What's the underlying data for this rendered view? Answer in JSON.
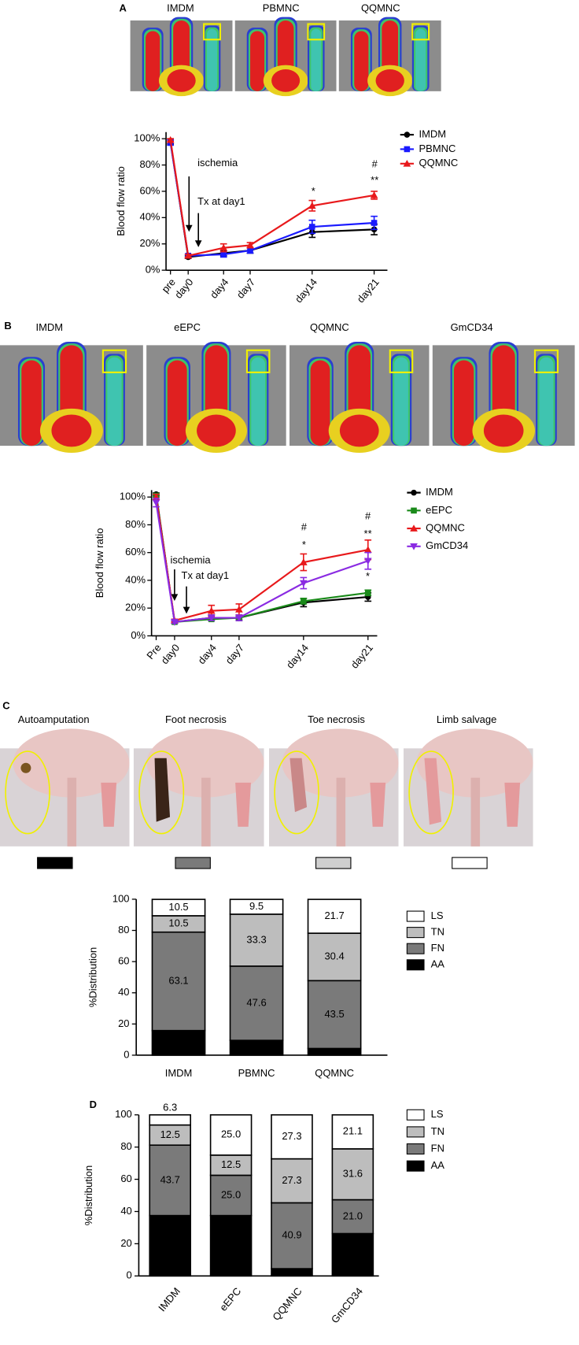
{
  "panels": {
    "A": {
      "label": "A",
      "images": [
        "IMDM",
        "PBMNC",
        "QQMNC"
      ]
    },
    "B": {
      "label": "B",
      "images": [
        "IMDM",
        "eEPC",
        "QQMNC",
        "GmCD34"
      ]
    },
    "C": {
      "label": "C",
      "images": [
        "Autoamputation",
        "Foot necrosis",
        "Toe necrosis",
        "Limb salvage"
      ]
    },
    "D": {
      "label": "D"
    }
  },
  "chart_data": [
    {
      "type": "line",
      "ylabel": "Blood flow ratio",
      "x": [
        -2,
        0,
        4,
        7,
        14,
        21
      ],
      "xlim": [
        -2.5,
        22.5
      ],
      "xticks": [
        {
          "value": -2,
          "label": "pre"
        },
        {
          "value": 0,
          "label": "day0"
        },
        {
          "value": 4,
          "label": "day4"
        },
        {
          "value": 7,
          "label": "day7"
        },
        {
          "value": 14,
          "label": "day14"
        },
        {
          "value": 21,
          "label": "day21"
        }
      ],
      "ylim": [
        0,
        105
      ],
      "yticks": [
        {
          "value": 0,
          "label": "0%"
        },
        {
          "value": 20,
          "label": "20%"
        },
        {
          "value": 40,
          "label": "40%"
        },
        {
          "value": 60,
          "label": "60%"
        },
        {
          "value": 80,
          "label": "80%"
        },
        {
          "value": 100,
          "label": "100%"
        }
      ],
      "series": [
        {
          "name": "IMDM",
          "color": "#000000",
          "marker": "circle",
          "values": [
            98,
            10,
            13,
            15,
            29,
            31
          ],
          "errors": [
            2,
            1,
            2,
            2,
            4,
            4
          ]
        },
        {
          "name": "PBMNC",
          "color": "#1a1aff",
          "marker": "square",
          "values": [
            97,
            11,
            12,
            15,
            33,
            36
          ],
          "errors": [
            2,
            1,
            2,
            2,
            5,
            5
          ]
        },
        {
          "name": "QQMNC",
          "color": "#e8191b",
          "marker": "triangle-up",
          "values": [
            99,
            11,
            17,
            19,
            49,
            57
          ],
          "errors": [
            1,
            1,
            3,
            2,
            4,
            3
          ]
        }
      ],
      "annotations": [
        "ischemia",
        "Tx at day1",
        "*",
        "#",
        "**"
      ]
    },
    {
      "type": "line",
      "ylabel": "Blood flow ratio",
      "x": [
        -2,
        0,
        4,
        7,
        14,
        21
      ],
      "xlim": [
        -2.5,
        22
      ],
      "xticks": [
        {
          "value": -2,
          "label": "Pre"
        },
        {
          "value": 0,
          "label": "day0"
        },
        {
          "value": 4,
          "label": "day4"
        },
        {
          "value": 7,
          "label": "day7"
        },
        {
          "value": 14,
          "label": "day14"
        },
        {
          "value": 21,
          "label": "day21"
        }
      ],
      "ylim": [
        0,
        105
      ],
      "yticks": [
        {
          "value": 0,
          "label": "0%"
        },
        {
          "value": 20,
          "label": "20%"
        },
        {
          "value": 40,
          "label": "40%"
        },
        {
          "value": 60,
          "label": "60%"
        },
        {
          "value": 80,
          "label": "80%"
        },
        {
          "value": 100,
          "label": "100%"
        }
      ],
      "series": [
        {
          "name": "IMDM",
          "color": "#000000",
          "marker": "circle",
          "values": [
            102,
            10,
            13,
            13,
            24,
            28
          ],
          "errors": [
            1,
            1,
            2,
            2,
            3,
            3
          ]
        },
        {
          "name": "eEPC",
          "color": "#1a8a1a",
          "marker": "square",
          "values": [
            101,
            10,
            12,
            13,
            25,
            31
          ],
          "errors": [
            1,
            1,
            1,
            1,
            2,
            2
          ]
        },
        {
          "name": "QQMNC",
          "color": "#e8191b",
          "marker": "triangle-up",
          "values": [
            100,
            11,
            18,
            19,
            53,
            62
          ],
          "errors": [
            2,
            1,
            4,
            4,
            6,
            7
          ]
        },
        {
          "name": "GmCD34",
          "color": "#8a2be2",
          "marker": "triangle-down",
          "values": [
            96,
            10,
            13,
            13,
            38,
            54
          ],
          "errors": [
            3,
            1,
            2,
            2,
            4,
            6
          ]
        }
      ],
      "annotations": [
        "ischemia",
        "Tx at day1",
        "#",
        "*",
        "#",
        "**",
        "*"
      ]
    },
    {
      "type": "stacked-bar",
      "ylabel": "%Distribution",
      "categories": [
        "IMDM",
        "PBMNC",
        "QQMNC"
      ],
      "ylim": [
        0,
        100
      ],
      "yticks": [
        0,
        20,
        40,
        60,
        80,
        100
      ],
      "series": [
        {
          "name": "AA",
          "color": "#000000",
          "values": [
            15.8,
            9.5,
            4.3
          ]
        },
        {
          "name": "FN",
          "color": "#7a7a7a",
          "values": [
            63.1,
            47.6,
            43.5
          ]
        },
        {
          "name": "TN",
          "color": "#bdbdbd",
          "values": [
            10.5,
            33.3,
            30.4
          ]
        },
        {
          "name": "LS",
          "color": "#ffffff",
          "values": [
            10.5,
            9.5,
            21.7
          ]
        }
      ]
    },
    {
      "type": "stacked-bar",
      "ylabel": "%Distribution",
      "categories": [
        "IMDM",
        "eEPC",
        "QQMNC",
        "GmCD34"
      ],
      "ylim": [
        0,
        100
      ],
      "yticks": [
        0,
        20,
        40,
        60,
        80,
        100
      ],
      "series": [
        {
          "name": "AA",
          "color": "#000000",
          "values": [
            37.5,
            37.5,
            4.5,
            26.3
          ]
        },
        {
          "name": "FN",
          "color": "#7a7a7a",
          "values": [
            43.7,
            25.0,
            40.9,
            21.0
          ],
          "value_labels": [
            "43.7",
            "25.0",
            "40.9",
            "21.0"
          ]
        },
        {
          "name": "TN",
          "color": "#bdbdbd",
          "values": [
            12.5,
            12.5,
            27.3,
            31.6
          ]
        },
        {
          "name": "LS",
          "color": "#ffffff",
          "values": [
            6.3,
            25.0,
            27.3,
            21.1
          ],
          "value_labels": [
            "6.3",
            "25.0",
            "27.3",
            "21.1"
          ]
        }
      ]
    }
  ]
}
